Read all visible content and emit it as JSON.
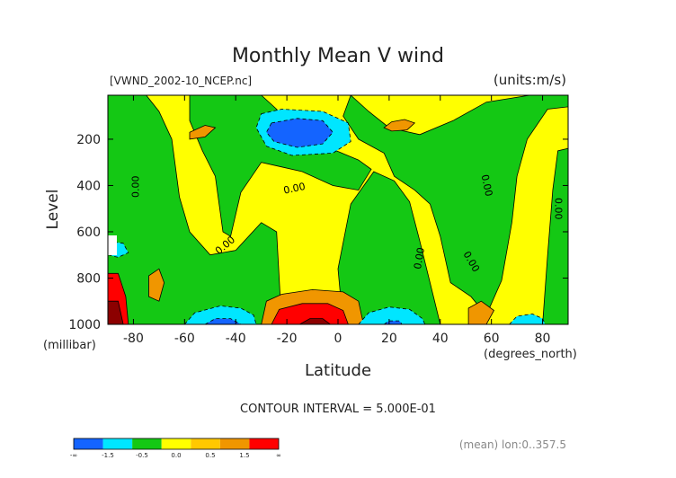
{
  "chart_data": {
    "type": "heatmap",
    "title": "Monthly Mean V wind",
    "source_label": "[VWND_2002-10_NCEP.nc]",
    "units_label": "(units:m/s)",
    "xlabel": "Latitude",
    "x_units": "(degrees_north)",
    "ylabel": "Level",
    "y_units": "(millibar)",
    "xlim": [
      -90,
      90
    ],
    "ylim": [
      1000,
      10
    ],
    "x_ticks": [
      -80,
      -60,
      -40,
      -20,
      0,
      20,
      40,
      60,
      80
    ],
    "y_ticks": [
      200,
      400,
      600,
      800,
      1000
    ],
    "contour_interval_text": "CONTOUR INTERVAL = 5.000E-01",
    "mean_note": "(mean) lon:0..357.5",
    "colorbar": {
      "labels": [
        "-∞",
        "-1.5",
        "-0.5",
        "0.0",
        "0.5",
        "1.5",
        "∞"
      ],
      "colors": [
        "#1464ff",
        "#00e6ff",
        "#14c814",
        "#ffff00",
        "#ffc800",
        "#f09600",
        "#ff0000"
      ]
    },
    "colors": {
      "background_fill": "#ffff00",
      "strong_negative": "#1464ff",
      "negative": "#00e6ff",
      "weak_negative": "#14c814",
      "weak_positive": "#ffff00",
      "positive": "#f09600",
      "strong_positive": "#ff0000",
      "extreme_positive": "#8c0000"
    },
    "regions": [
      {
        "level": "weak_negative",
        "points": [
          [
            -90,
            10
          ],
          [
            -75,
            10
          ],
          [
            -70,
            80
          ],
          [
            -65,
            200
          ],
          [
            -62,
            450
          ],
          [
            -58,
            600
          ],
          [
            -50,
            700
          ],
          [
            -40,
            680
          ],
          [
            -30,
            560
          ],
          [
            -24,
            600
          ],
          [
            -22,
            1000
          ],
          [
            -90,
            1000
          ]
        ]
      },
      {
        "level": "weak_negative",
        "points": [
          [
            -58,
            10
          ],
          [
            -30,
            10
          ],
          [
            -24,
            70
          ],
          [
            -18,
            150
          ],
          [
            -5,
            230
          ],
          [
            8,
            290
          ],
          [
            13,
            330
          ],
          [
            8,
            420
          ],
          [
            -2,
            400
          ],
          [
            -14,
            340
          ],
          [
            -22,
            320
          ],
          [
            -30,
            300
          ],
          [
            -38,
            430
          ],
          [
            -42,
            620
          ],
          [
            -45,
            600
          ],
          [
            -48,
            360
          ],
          [
            -53,
            250
          ],
          [
            -58,
            120
          ]
        ]
      },
      {
        "level": "weak_negative",
        "points": [
          [
            5,
            10
          ],
          [
            12,
            80
          ],
          [
            20,
            150
          ],
          [
            32,
            180
          ],
          [
            45,
            120
          ],
          [
            58,
            40
          ],
          [
            75,
            10
          ],
          [
            90,
            10
          ],
          [
            90,
            60
          ],
          [
            82,
            70
          ],
          [
            74,
            200
          ],
          [
            70,
            360
          ],
          [
            68,
            560
          ],
          [
            64,
            810
          ],
          [
            58,
            960
          ],
          [
            52,
            880
          ],
          [
            44,
            820
          ],
          [
            40,
            620
          ],
          [
            36,
            480
          ],
          [
            30,
            420
          ],
          [
            22,
            360
          ],
          [
            18,
            260
          ],
          [
            8,
            200
          ],
          [
            2,
            100
          ]
        ]
      },
      {
        "level": "weak_negative",
        "points": [
          [
            5,
            480
          ],
          [
            14,
            340
          ],
          [
            22,
            380
          ],
          [
            28,
            470
          ],
          [
            32,
            640
          ],
          [
            36,
            820
          ],
          [
            40,
            1000
          ],
          [
            2,
            1000
          ],
          [
            0,
            760
          ]
        ]
      },
      {
        "level": "weak_negative",
        "points": [
          [
            80,
            1000
          ],
          [
            82,
            700
          ],
          [
            84,
            420
          ],
          [
            86,
            250
          ],
          [
            90,
            240
          ],
          [
            90,
            1000
          ]
        ]
      },
      {
        "level": "positive",
        "points": [
          [
            -58,
            170
          ],
          [
            -52,
            140
          ],
          [
            -48,
            150
          ],
          [
            -52,
            190
          ],
          [
            -58,
            200
          ]
        ]
      },
      {
        "level": "positive",
        "points": [
          [
            -74,
            790
          ],
          [
            -70,
            760
          ],
          [
            -68,
            820
          ],
          [
            -70,
            900
          ],
          [
            -74,
            880
          ]
        ]
      },
      {
        "level": "positive",
        "points": [
          [
            18,
            150
          ],
          [
            21,
            125
          ],
          [
            26,
            115
          ],
          [
            30,
            130
          ],
          [
            27,
            160
          ],
          [
            21,
            165
          ]
        ]
      },
      {
        "level": "positive",
        "points": [
          [
            51,
            930
          ],
          [
            56,
            900
          ],
          [
            61,
            940
          ],
          [
            58,
            1000
          ],
          [
            51,
            1000
          ]
        ]
      },
      {
        "level": "positive",
        "points": [
          [
            -30,
            1000
          ],
          [
            -28,
            900
          ],
          [
            -22,
            870
          ],
          [
            -10,
            850
          ],
          [
            2,
            860
          ],
          [
            8,
            900
          ],
          [
            10,
            1000
          ]
        ]
      },
      {
        "level": "strong_positive",
        "points": [
          [
            -26,
            1000
          ],
          [
            -23,
            935
          ],
          [
            -14,
            910
          ],
          [
            -4,
            910
          ],
          [
            2,
            940
          ],
          [
            4,
            1000
          ]
        ]
      },
      {
        "level": "extreme_positive",
        "points": [
          [
            -15,
            1000
          ],
          [
            -11,
            975
          ],
          [
            -6,
            975
          ],
          [
            -3,
            1000
          ]
        ]
      },
      {
        "level": "negative",
        "points": [
          [
            -30,
            90
          ],
          [
            -22,
            70
          ],
          [
            -6,
            80
          ],
          [
            4,
            130
          ],
          [
            5,
            210
          ],
          [
            -2,
            260
          ],
          [
            -18,
            270
          ],
          [
            -28,
            230
          ],
          [
            -32,
            150
          ]
        ]
      },
      {
        "level": "strong_negative",
        "points": [
          [
            -26,
            130
          ],
          [
            -16,
            110
          ],
          [
            -6,
            120
          ],
          [
            -2,
            170
          ],
          [
            -6,
            220
          ],
          [
            -16,
            235
          ],
          [
            -25,
            210
          ],
          [
            -28,
            170
          ]
        ]
      },
      {
        "level": "negative",
        "points": [
          [
            -60,
            1000
          ],
          [
            -56,
            950
          ],
          [
            -46,
            920
          ],
          [
            -38,
            930
          ],
          [
            -33,
            960
          ],
          [
            -32,
            1000
          ]
        ]
      },
      {
        "level": "strong_negative",
        "points": [
          [
            -52,
            1000
          ],
          [
            -48,
            975
          ],
          [
            -42,
            975
          ],
          [
            -38,
            1000
          ]
        ]
      },
      {
        "level": "negative",
        "points": [
          [
            8,
            1000
          ],
          [
            12,
            950
          ],
          [
            20,
            925
          ],
          [
            28,
            935
          ],
          [
            33,
            975
          ],
          [
            34,
            1000
          ]
        ]
      },
      {
        "level": "strong_negative",
        "points": [
          [
            18,
            1000
          ],
          [
            20,
            985
          ],
          [
            24,
            985
          ],
          [
            25,
            1000
          ]
        ]
      },
      {
        "level": "negative",
        "points": [
          [
            67,
            1000
          ],
          [
            70,
            965
          ],
          [
            76,
            955
          ],
          [
            80,
            975
          ],
          [
            81,
            1000
          ]
        ]
      },
      {
        "level": "negative",
        "points": [
          [
            -90,
            640
          ],
          [
            -84,
            650
          ],
          [
            -82,
            690
          ],
          [
            -86,
            710
          ],
          [
            -90,
            700
          ]
        ]
      },
      {
        "level": "strong_positive",
        "points": [
          [
            -90,
            780
          ],
          [
            -86,
            780
          ],
          [
            -83,
            880
          ],
          [
            -82,
            1000
          ],
          [
            -90,
            1000
          ]
        ]
      },
      {
        "level": "extreme_positive",
        "points": [
          [
            -90,
            900
          ],
          [
            -86,
            900
          ],
          [
            -84,
            1000
          ],
          [
            -90,
            1000
          ]
        ]
      }
    ],
    "contour_labels": [
      {
        "text": "0.00",
        "x": -79,
        "y": 405,
        "angle": -90
      },
      {
        "text": "0.00",
        "x": -17,
        "y": 415,
        "angle": -12
      },
      {
        "text": "0.00",
        "x": -44,
        "y": 660,
        "angle": -40
      },
      {
        "text": "0.00",
        "x": 32,
        "y": 715,
        "angle": -80
      },
      {
        "text": "0.00",
        "x": 58,
        "y": 400,
        "angle": 78
      },
      {
        "text": "0.00",
        "x": 52,
        "y": 730,
        "angle": 60
      },
      {
        "text": "0.00",
        "x": 86,
        "y": 500,
        "angle": 90
      }
    ]
  }
}
